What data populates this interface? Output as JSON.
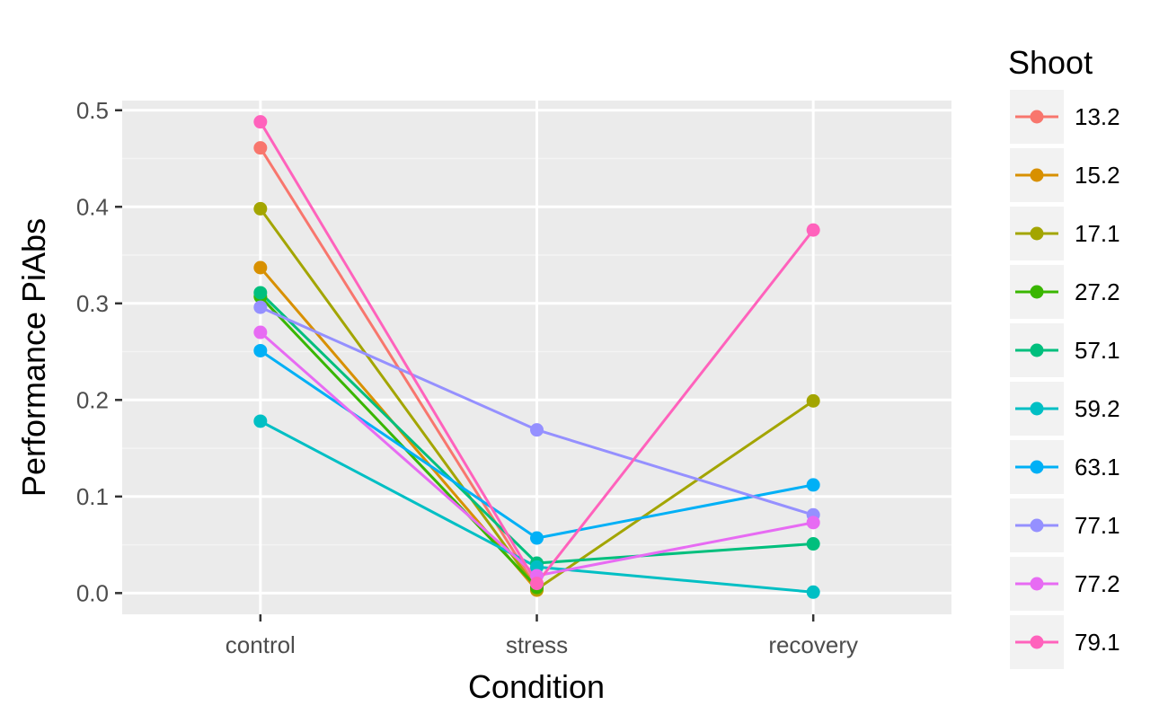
{
  "chart_data": {
    "type": "line",
    "title": "",
    "xlabel": "Condition",
    "ylabel": "Performance PiAbs",
    "categories": [
      "control",
      "stress",
      "recovery"
    ],
    "ylim": [
      -0.022,
      0.51
    ],
    "yticks": [
      0.0,
      0.1,
      0.2,
      0.3,
      0.4,
      0.5
    ],
    "ytick_labels": [
      "0.0",
      "0.1",
      "0.2",
      "0.3",
      "0.4",
      "0.5"
    ],
    "grid": true,
    "legend": {
      "title": "Shoot",
      "position": "right"
    },
    "series": [
      {
        "name": "13.2",
        "color": "#F8766D",
        "values": [
          0.461,
          0.005,
          null
        ]
      },
      {
        "name": "15.2",
        "color": "#D89000",
        "values": [
          0.337,
          0.003,
          null
        ]
      },
      {
        "name": "17.1",
        "color": "#A3A500",
        "values": [
          0.398,
          0.004,
          0.199
        ]
      },
      {
        "name": "27.2",
        "color": "#39B600",
        "values": [
          0.307,
          0.006,
          null
        ]
      },
      {
        "name": "57.1",
        "color": "#00BF7D",
        "values": [
          0.311,
          0.031,
          0.051
        ]
      },
      {
        "name": "59.2",
        "color": "#00BFC4",
        "values": [
          0.178,
          0.027,
          0.001
        ]
      },
      {
        "name": "63.1",
        "color": "#00B0F6",
        "values": [
          0.251,
          0.057,
          0.112
        ]
      },
      {
        "name": "77.1",
        "color": "#9590FF",
        "values": [
          0.296,
          0.169,
          0.081
        ]
      },
      {
        "name": "77.2",
        "color": "#E76BF3",
        "values": [
          0.27,
          0.018,
          0.073
        ]
      },
      {
        "name": "79.1",
        "color": "#FF62BC",
        "values": [
          0.488,
          0.01,
          0.376
        ]
      }
    ]
  }
}
